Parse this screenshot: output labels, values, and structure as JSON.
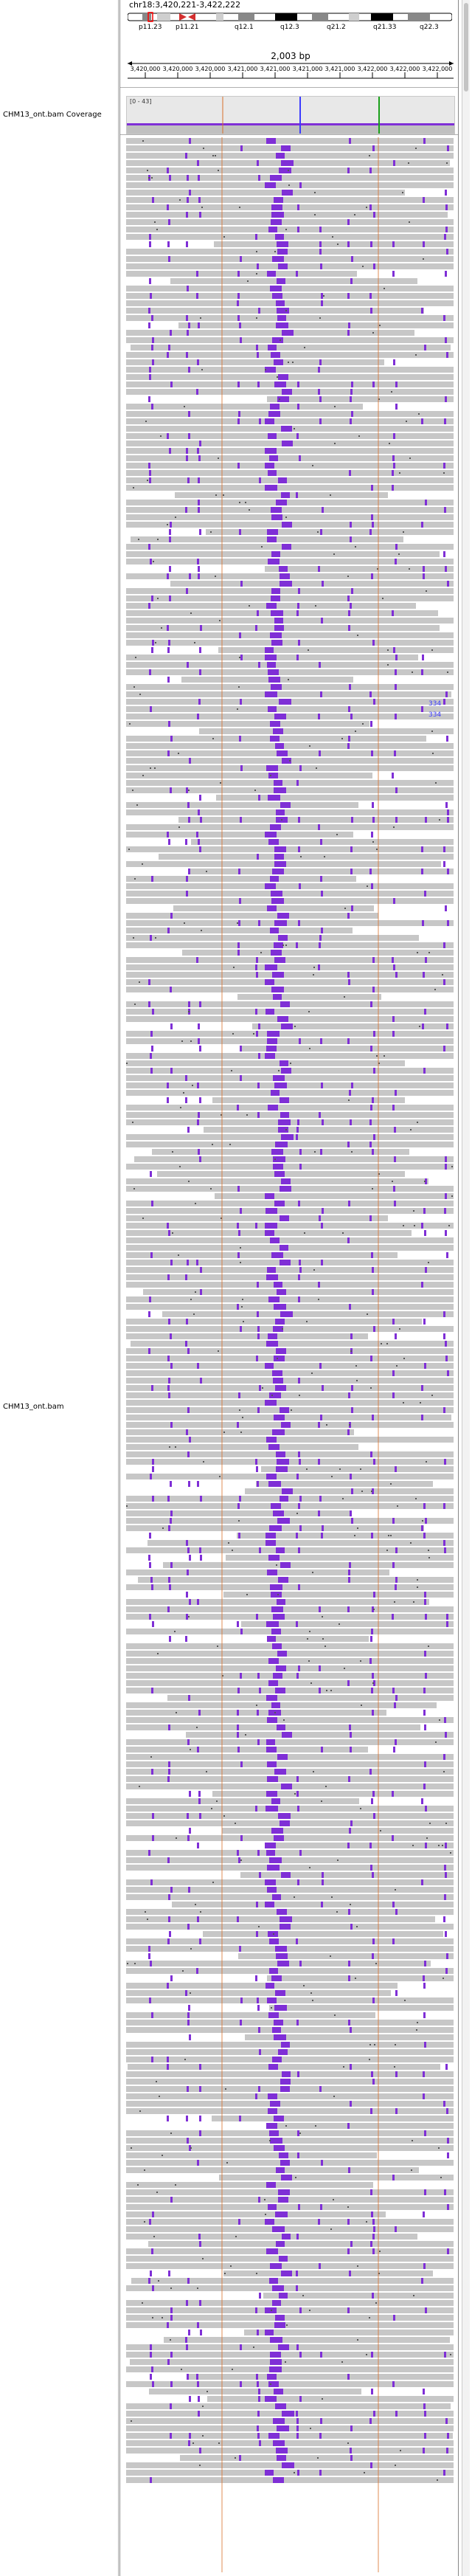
{
  "locus": {
    "label": "chr18:3,420,221-3,422,222"
  },
  "ideogram": {
    "bands": [
      "p11.23",
      "p11.21",
      "q12.1",
      "q12.3",
      "q21.2",
      "q21.33",
      "q22.3"
    ],
    "colors": {
      "dark": "#000000",
      "gray": "#888888",
      "light": "#cfcfcf",
      "red": "#d42e2e"
    }
  },
  "ruler": {
    "span_label": "2,003 bp",
    "tick_labels": [
      "3,420,000",
      "3,420,000",
      "3,420,000",
      "3,421,000",
      "3,421,000",
      "3,421,000",
      "3,421,000",
      "3,422,000",
      "3,422,000",
      "3,422,000"
    ]
  },
  "tracks": {
    "coverage_name": "CHM13_ont.bam Coverage",
    "coverage_range": "[0 - 43]",
    "alignment_name": "CHM13_ont.bam",
    "insertion_labels": [
      "334",
      "334"
    ]
  },
  "colors": {
    "read": "#c7c7c7",
    "insertion": "#7f2fd6",
    "coverage": "#c0c0c0",
    "coverage_top": "#7f2fd6",
    "marker_blue": "#3b3bff",
    "marker_green": "#1aa01a",
    "guide_line": "#d9702a"
  }
}
